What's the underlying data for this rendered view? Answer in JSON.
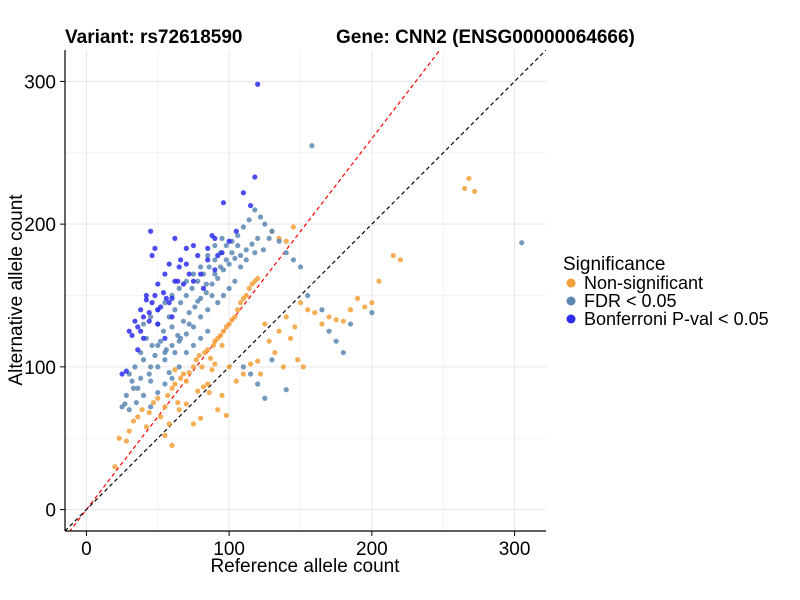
{
  "chart_data": {
    "type": "scatter",
    "title_left": "Variant: rs72618590",
    "title_right": "Gene: CNN2 (ENSG00000064666)",
    "xlabel": "Reference allele count",
    "ylabel": "Alternative allele count",
    "xlim": [
      -15,
      322
    ],
    "ylim": [
      -15,
      322
    ],
    "xticks": [
      0,
      100,
      200,
      300
    ],
    "yticks": [
      0,
      100,
      200,
      300
    ],
    "reference_lines": [
      {
        "name": "red-diagonal",
        "slope": 1.3,
        "intercept": 0,
        "color": "#ff0000",
        "dash": "dashed"
      },
      {
        "name": "black-diagonal",
        "slope": 1.0,
        "intercept": 0,
        "color": "#000000",
        "dash": "dashed"
      }
    ],
    "legend": {
      "title": "Significance",
      "position": "right",
      "entries": [
        {
          "key": "non_significant",
          "label": "Non-significant",
          "color": "#f5a038"
        },
        {
          "key": "fdr",
          "label": "FDR < 0.05",
          "color": "#5c87b3"
        },
        {
          "key": "bonferroni",
          "label": "Bonferroni P-val < 0.05",
          "color": "#2d2df0"
        }
      ]
    },
    "series": [
      {
        "name": "Non-significant",
        "key": "non_significant",
        "points": [
          [
            20,
            30
          ],
          [
            23,
            50
          ],
          [
            28,
            48
          ],
          [
            30,
            55
          ],
          [
            33,
            62
          ],
          [
            36,
            65
          ],
          [
            39,
            70
          ],
          [
            42,
            58
          ],
          [
            44,
            68
          ],
          [
            47,
            75
          ],
          [
            50,
            78
          ],
          [
            52,
            65
          ],
          [
            55,
            72
          ],
          [
            57,
            80
          ],
          [
            58,
            60
          ],
          [
            60,
            85
          ],
          [
            62,
            88
          ],
          [
            64,
            75
          ],
          [
            66,
            92
          ],
          [
            68,
            95
          ],
          [
            70,
            90
          ],
          [
            72,
            96
          ],
          [
            75,
            100
          ],
          [
            77,
            105
          ],
          [
            79,
            108
          ],
          [
            81,
            100
          ],
          [
            83,
            110
          ],
          [
            85,
            112
          ],
          [
            87,
            106
          ],
          [
            89,
            115
          ],
          [
            90,
            118
          ],
          [
            92,
            120
          ],
          [
            94,
            122
          ],
          [
            96,
            125
          ],
          [
            98,
            128
          ],
          [
            100,
            130
          ],
          [
            102,
            133
          ],
          [
            104,
            135
          ],
          [
            106,
            140
          ],
          [
            108,
            145
          ],
          [
            110,
            148
          ],
          [
            112,
            150
          ],
          [
            114,
            155
          ],
          [
            116,
            158
          ],
          [
            118,
            160
          ],
          [
            120,
            162
          ],
          [
            125,
            130
          ],
          [
            128,
            118
          ],
          [
            132,
            110
          ],
          [
            135,
            125
          ],
          [
            140,
            135
          ],
          [
            143,
            120
          ],
          [
            146,
            128
          ],
          [
            150,
            145
          ],
          [
            155,
            140
          ],
          [
            160,
            138
          ],
          [
            165,
            130
          ],
          [
            170,
            135
          ],
          [
            175,
            133
          ],
          [
            180,
            132
          ],
          [
            185,
            140
          ],
          [
            190,
            148
          ],
          [
            195,
            142
          ],
          [
            200,
            145
          ],
          [
            205,
            160
          ],
          [
            215,
            178
          ],
          [
            220,
            175
          ],
          [
            265,
            225
          ],
          [
            268,
            232
          ],
          [
            272,
            223
          ],
          [
            95,
            80
          ],
          [
            92,
            70
          ],
          [
            98,
            66
          ],
          [
            85,
            88
          ],
          [
            88,
            98
          ],
          [
            105,
            90
          ],
          [
            110,
            95
          ],
          [
            115,
            102
          ],
          [
            120,
            104
          ],
          [
            122,
            95
          ],
          [
            148,
            105
          ],
          [
            152,
            100
          ],
          [
            138,
            100
          ],
          [
            130,
            195
          ],
          [
            135,
            190
          ],
          [
            145,
            198
          ],
          [
            140,
            188
          ],
          [
            60,
            45
          ],
          [
            55,
            52
          ],
          [
            65,
            70
          ],
          [
            70,
            74
          ],
          [
            75,
            60
          ],
          [
            80,
            64
          ],
          [
            100,
            100
          ],
          [
            95,
            115
          ],
          [
            78,
            83
          ],
          [
            82,
            86
          ],
          [
            86,
            82
          ],
          [
            90,
            102
          ],
          [
            62,
            98
          ]
        ]
      },
      {
        "name": "FDR < 0.05",
        "key": "fdr",
        "points": [
          [
            25,
            72
          ],
          [
            28,
            80
          ],
          [
            30,
            95
          ],
          [
            32,
            90
          ],
          [
            34,
            100
          ],
          [
            36,
            85
          ],
          [
            38,
            110
          ],
          [
            40,
            105
          ],
          [
            42,
            120
          ],
          [
            44,
            95
          ],
          [
            46,
            115
          ],
          [
            48,
            108
          ],
          [
            50,
            130
          ],
          [
            52,
            118
          ],
          [
            54,
            125
          ],
          [
            56,
            112
          ],
          [
            58,
            135
          ],
          [
            60,
            128
          ],
          [
            62,
            140
          ],
          [
            64,
            122
          ],
          [
            66,
            145
          ],
          [
            68,
            132
          ],
          [
            70,
            150
          ],
          [
            72,
            138
          ],
          [
            74,
            155
          ],
          [
            76,
            142
          ],
          [
            78,
            160
          ],
          [
            80,
            148
          ],
          [
            82,
            165
          ],
          [
            84,
            152
          ],
          [
            86,
            170
          ],
          [
            88,
            158
          ],
          [
            90,
            175
          ],
          [
            92,
            162
          ],
          [
            94,
            180
          ],
          [
            96,
            168
          ],
          [
            98,
            185
          ],
          [
            100,
            172
          ],
          [
            102,
            188
          ],
          [
            104,
            176
          ],
          [
            106,
            192
          ],
          [
            108,
            178
          ],
          [
            110,
            198
          ],
          [
            112,
            182
          ],
          [
            114,
            203
          ],
          [
            116,
            186
          ],
          [
            118,
            210
          ],
          [
            120,
            190
          ],
          [
            122,
            205
          ],
          [
            125,
            200
          ],
          [
            130,
            195
          ],
          [
            135,
            188
          ],
          [
            140,
            180
          ],
          [
            145,
            175
          ],
          [
            150,
            170
          ],
          [
            155,
            150
          ],
          [
            158,
            255
          ],
          [
            165,
            140
          ],
          [
            170,
            125
          ],
          [
            175,
            118
          ],
          [
            180,
            110
          ],
          [
            185,
            130
          ],
          [
            200,
            138
          ],
          [
            305,
            187
          ],
          [
            110,
            100
          ],
          [
            115,
            95
          ],
          [
            120,
            88
          ],
          [
            125,
            78
          ],
          [
            140,
            84
          ],
          [
            130,
            105
          ],
          [
            45,
            72
          ],
          [
            50,
            82
          ],
          [
            55,
            88
          ],
          [
            60,
            92
          ],
          [
            65,
            100
          ],
          [
            70,
            110
          ],
          [
            75,
            115
          ],
          [
            80,
            120
          ],
          [
            85,
            125
          ],
          [
            35,
            75
          ],
          [
            40,
            80
          ],
          [
            45,
            100
          ],
          [
            55,
            105
          ],
          [
            60,
            115
          ],
          [
            65,
            118
          ],
          [
            70,
            123
          ],
          [
            75,
            128
          ],
          [
            80,
            135
          ],
          [
            85,
            140
          ],
          [
            40,
            130
          ],
          [
            45,
            135
          ],
          [
            50,
            140
          ],
          [
            55,
            145
          ],
          [
            60,
            150
          ],
          [
            65,
            155
          ],
          [
            70,
            160
          ],
          [
            75,
            165
          ],
          [
            80,
            170
          ],
          [
            85,
            178
          ],
          [
            90,
            185
          ],
          [
            95,
            190
          ],
          [
            50,
            100
          ],
          [
            55,
            110
          ],
          [
            45,
            90
          ],
          [
            38,
            92
          ],
          [
            33,
            85
          ],
          [
            30,
            70
          ],
          [
            27,
            74
          ],
          [
            50,
            115
          ],
          [
            58,
            96
          ],
          [
            62,
            110
          ],
          [
            66,
            120
          ],
          [
            72,
            130
          ],
          [
            78,
            146
          ],
          [
            84,
            158
          ],
          [
            88,
            150
          ],
          [
            92,
            145
          ],
          [
            96,
            150
          ],
          [
            100,
            155
          ],
          [
            104,
            160
          ],
          [
            108,
            170
          ],
          [
            112,
            175
          ],
          [
            118,
            180
          ],
          [
            124,
            182
          ],
          [
            128,
            190
          ],
          [
            90,
            165
          ],
          [
            94,
            170
          ],
          [
            98,
            175
          ],
          [
            102,
            180
          ],
          [
            106,
            185
          ]
        ]
      },
      {
        "name": "Bonferroni P-val < 0.05",
        "key": "bonferroni",
        "points": [
          [
            25,
            95
          ],
          [
            28,
            97
          ],
          [
            30,
            125
          ],
          [
            32,
            122
          ],
          [
            34,
            132
          ],
          [
            36,
            128
          ],
          [
            38,
            140
          ],
          [
            40,
            135
          ],
          [
            42,
            147
          ],
          [
            44,
            138
          ],
          [
            45,
            195
          ],
          [
            46,
            145
          ],
          [
            48,
            150
          ],
          [
            50,
            140
          ],
          [
            52,
            142
          ],
          [
            54,
            152
          ],
          [
            55,
            165
          ],
          [
            56,
            148
          ],
          [
            58,
            145
          ],
          [
            60,
            135
          ],
          [
            62,
            190
          ],
          [
            64,
            160
          ],
          [
            65,
            170
          ],
          [
            66,
            175
          ],
          [
            68,
            158
          ],
          [
            70,
            183
          ],
          [
            72,
            165
          ],
          [
            75,
            185
          ],
          [
            78,
            178
          ],
          [
            80,
            165
          ],
          [
            82,
            155
          ],
          [
            85,
            175
          ],
          [
            88,
            192
          ],
          [
            90,
            190
          ],
          [
            92,
            178
          ],
          [
            100,
            188
          ],
          [
            105,
            195
          ],
          [
            110,
            222
          ],
          [
            115,
            213
          ],
          [
            118,
            233
          ],
          [
            120,
            298
          ],
          [
            96,
            215
          ],
          [
            46,
            178
          ],
          [
            48,
            183
          ],
          [
            38,
            125
          ],
          [
            42,
            150
          ],
          [
            50,
            158
          ],
          [
            58,
            172
          ],
          [
            62,
            160
          ],
          [
            44,
            132
          ],
          [
            36,
            112
          ],
          [
            40,
            120
          ],
          [
            50,
            130
          ],
          [
            55,
            120
          ],
          [
            60,
            148
          ],
          [
            70,
            172
          ],
          [
            75,
            160
          ],
          [
            85,
            183
          ],
          [
            90,
            168
          ],
          [
            95,
            180
          ]
        ]
      }
    ]
  }
}
